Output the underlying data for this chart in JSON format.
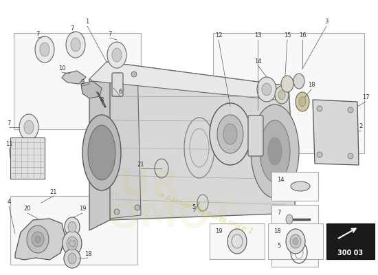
{
  "bg_color": "#ffffff",
  "fig_width": 5.5,
  "fig_height": 4.0,
  "dpi": 100,
  "line_color": "#333333",
  "box_bg": "#f8f8f8",
  "box_edge": "#aaaaaa",
  "part_color_light": "#e0e0e0",
  "part_color_mid": "#cccccc",
  "part_color_dark": "#aaaaaa",
  "watermark_color": "#c8b830",
  "logo_color": "#d4c870"
}
